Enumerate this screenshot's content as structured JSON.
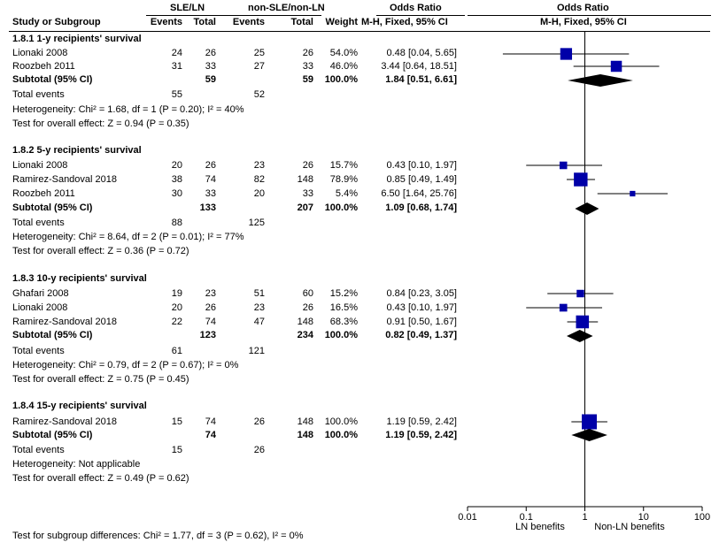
{
  "header": {
    "exp_group": "SLE/LN",
    "ctl_group": "non-SLE/non-LN",
    "or_title": "Odds Ratio",
    "plot_title": "Odds Ratio",
    "study_col": "Study or Subgroup",
    "events_col": "Events",
    "total_col": "Total",
    "events_col2": "Events",
    "total_col2": "Total",
    "weight_col": "Weight",
    "method": "M-H, Fixed, 95% CI",
    "method_plot": "M-H, Fixed, 95% CI"
  },
  "subgroups": [
    {
      "title": "1.8.1 1-y recipients' survival",
      "studies": [
        {
          "name": "Lionaki 2008",
          "e1": "24",
          "t1": "26",
          "e2": "25",
          "t2": "26",
          "weight": "54.0%",
          "ci": "0.48 [0.04, 5.65]"
        },
        {
          "name": "Roozbeh 2011",
          "e1": "31",
          "t1": "33",
          "e2": "27",
          "t2": "33",
          "weight": "46.0%",
          "ci": "3.44 [0.64, 18.51]"
        }
      ],
      "subtotal": {
        "label": "Subtotal (95% CI)",
        "t1": "59",
        "t2": "59",
        "weight": "100.0%",
        "ci": "1.84 [0.51, 6.61]"
      },
      "total_events": {
        "label": "Total events",
        "e1": "55",
        "e2": "52"
      },
      "heterogeneity": "Heterogeneity: Chi² = 1.68, df = 1 (P = 0.20); I² = 40%",
      "overall": "Test for overall effect: Z = 0.94 (P = 0.35)"
    },
    {
      "title": "1.8.2 5-y recipients' survival",
      "studies": [
        {
          "name": "Lionaki 2008",
          "e1": "20",
          "t1": "26",
          "e2": "23",
          "t2": "26",
          "weight": "15.7%",
          "ci": "0.43 [0.10, 1.97]"
        },
        {
          "name": "Ramirez-Sandoval 2018",
          "e1": "38",
          "t1": "74",
          "e2": "82",
          "t2": "148",
          "weight": "78.9%",
          "ci": "0.85 [0.49, 1.49]"
        },
        {
          "name": "Roozbeh 2011",
          "e1": "30",
          "t1": "33",
          "e2": "20",
          "t2": "33",
          "weight": "5.4%",
          "ci": "6.50 [1.64, 25.76]"
        }
      ],
      "subtotal": {
        "label": "Subtotal (95% CI)",
        "t1": "133",
        "t2": "207",
        "weight": "100.0%",
        "ci": "1.09 [0.68, 1.74]"
      },
      "total_events": {
        "label": "Total events",
        "e1": "88",
        "e2": "125"
      },
      "heterogeneity": "Heterogeneity: Chi² = 8.64, df = 2 (P = 0.01); I² = 77%",
      "overall": "Test for overall effect: Z = 0.36 (P = 0.72)"
    },
    {
      "title": "1.8.3 10-y recipients' survival",
      "studies": [
        {
          "name": "Ghafari 2008",
          "e1": "19",
          "t1": "23",
          "e2": "51",
          "t2": "60",
          "weight": "15.2%",
          "ci": "0.84 [0.23, 3.05]"
        },
        {
          "name": "Lionaki 2008",
          "e1": "20",
          "t1": "26",
          "e2": "23",
          "t2": "26",
          "weight": "16.5%",
          "ci": "0.43 [0.10, 1.97]"
        },
        {
          "name": "Ramirez-Sandoval 2018",
          "e1": "22",
          "t1": "74",
          "e2": "47",
          "t2": "148",
          "weight": "68.3%",
          "ci": "0.91 [0.50, 1.67]"
        }
      ],
      "subtotal": {
        "label": "Subtotal (95% CI)",
        "t1": "123",
        "t2": "234",
        "weight": "100.0%",
        "ci": "0.82 [0.49, 1.37]"
      },
      "total_events": {
        "label": "Total events",
        "e1": "61",
        "e2": "121"
      },
      "heterogeneity": "Heterogeneity: Chi² = 0.79, df = 2 (P = 0.67); I² = 0%",
      "overall": "Test for overall effect: Z = 0.75 (P = 0.45)"
    },
    {
      "title": "1.8.4 15-y recipients' survival",
      "studies": [
        {
          "name": "Ramirez-Sandoval 2018",
          "e1": "15",
          "t1": "74",
          "e2": "26",
          "t2": "148",
          "weight": "100.0%",
          "ci": "1.19 [0.59, 2.42]"
        }
      ],
      "subtotal": {
        "label": "Subtotal (95% CI)",
        "t1": "74",
        "t2": "148",
        "weight": "100.0%",
        "ci": "1.19 [0.59, 2.42]"
      },
      "total_events": {
        "label": "Total events",
        "e1": "15",
        "e2": "26"
      },
      "heterogeneity": "Heterogeneity: Not applicable",
      "overall": "Test for overall effect: Z = 0.49 (P = 0.62)"
    }
  ],
  "footer": {
    "subgroup_test": "Test for subgroup differences: Chi² = 1.77, df = 3 (P = 0.62), I² = 0%",
    "favours_left": "LN benefits",
    "favours_right": "Non-LN benefits"
  },
  "colors": {
    "marker": "#0000a8",
    "diamond": "#000000"
  },
  "chart_data": {
    "type": "forest",
    "title": "Odds Ratio",
    "xlabel": "M-H, Fixed, 95% CI",
    "xscale": "log",
    "xlim": [
      0.01,
      100
    ],
    "ticks": [
      0.01,
      0.1,
      1,
      10,
      100
    ],
    "tick_labels": [
      "0.01",
      "0.1",
      "1",
      "10",
      "100"
    ],
    "reference_line": 1,
    "studies": [
      {
        "subgroup": "1.8.1",
        "name": "Lionaki 2008",
        "or": 0.48,
        "lo": 0.04,
        "hi": 5.65,
        "weight": 54.0
      },
      {
        "subgroup": "1.8.1",
        "name": "Roozbeh 2011",
        "or": 3.44,
        "lo": 0.64,
        "hi": 18.51,
        "weight": 46.0
      },
      {
        "subgroup": "1.8.2",
        "name": "Lionaki 2008",
        "or": 0.43,
        "lo": 0.1,
        "hi": 1.97,
        "weight": 15.7
      },
      {
        "subgroup": "1.8.2",
        "name": "Ramirez-Sandoval 2018",
        "or": 0.85,
        "lo": 0.49,
        "hi": 1.49,
        "weight": 78.9
      },
      {
        "subgroup": "1.8.2",
        "name": "Roozbeh 2011",
        "or": 6.5,
        "lo": 1.64,
        "hi": 25.76,
        "weight": 5.4
      },
      {
        "subgroup": "1.8.3",
        "name": "Ghafari 2008",
        "or": 0.84,
        "lo": 0.23,
        "hi": 3.05,
        "weight": 15.2
      },
      {
        "subgroup": "1.8.3",
        "name": "Lionaki 2008",
        "or": 0.43,
        "lo": 0.1,
        "hi": 1.97,
        "weight": 16.5
      },
      {
        "subgroup": "1.8.3",
        "name": "Ramirez-Sandoval 2018",
        "or": 0.91,
        "lo": 0.5,
        "hi": 1.67,
        "weight": 68.3
      },
      {
        "subgroup": "1.8.4",
        "name": "Ramirez-Sandoval 2018",
        "or": 1.19,
        "lo": 0.59,
        "hi": 2.42,
        "weight": 100.0
      }
    ],
    "subtotals": [
      {
        "subgroup": "1.8.1",
        "or": 1.84,
        "lo": 0.51,
        "hi": 6.61
      },
      {
        "subgroup": "1.8.2",
        "or": 1.09,
        "lo": 0.68,
        "hi": 1.74
      },
      {
        "subgroup": "1.8.3",
        "or": 0.82,
        "lo": 0.49,
        "hi": 1.37
      },
      {
        "subgroup": "1.8.4",
        "or": 1.19,
        "lo": 0.59,
        "hi": 2.42
      }
    ]
  }
}
